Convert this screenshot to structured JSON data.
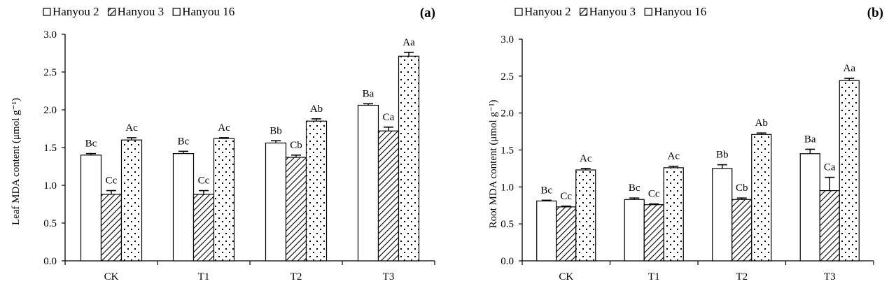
{
  "chart_data": [
    {
      "type": "bar",
      "panel_label": "(a)",
      "title": "",
      "xlabel": "",
      "ylabel": "Leaf MDA content (μmol g⁻¹)",
      "ylim": [
        0,
        3.0
      ],
      "yticks": [
        "0.0",
        "0.5",
        "1.0",
        "1.5",
        "2.0",
        "2.5",
        "3.0"
      ],
      "categories": [
        "CK",
        "T1",
        "T2",
        "T3"
      ],
      "legend_position": "top-left",
      "grid": false,
      "series": [
        {
          "name": "Hanyou 2",
          "pattern": "plain",
          "values": [
            1.4,
            1.42,
            1.56,
            2.06
          ],
          "errors": [
            0.02,
            0.03,
            0.03,
            0.02
          ],
          "labels": [
            "Bc",
            "Bc",
            "Bb",
            "Ba"
          ]
        },
        {
          "name": "Hanyou 3",
          "pattern": "hatch",
          "values": [
            0.88,
            0.88,
            1.37,
            1.72
          ],
          "errors": [
            0.05,
            0.05,
            0.03,
            0.05
          ],
          "labels": [
            "Cc",
            "Cc",
            "Cb",
            "Ca"
          ]
        },
        {
          "name": "Hanyou 16",
          "pattern": "dots",
          "values": [
            1.6,
            1.62,
            1.85,
            2.71
          ],
          "errors": [
            0.03,
            0.01,
            0.03,
            0.05
          ],
          "labels": [
            "Ac",
            "Ac",
            "Ab",
            "Aa"
          ]
        }
      ]
    },
    {
      "type": "bar",
      "panel_label": "(b)",
      "title": "",
      "xlabel": "",
      "ylabel": "Root MDA content (μmol g⁻¹)",
      "ylim": [
        0,
        3.0
      ],
      "yticks": [
        "0.0",
        "0.5",
        "1.0",
        "1.5",
        "2.0",
        "2.5",
        "3.0"
      ],
      "categories": [
        "CK",
        "T1",
        "T2",
        "T3"
      ],
      "legend_position": "top-left",
      "grid": false,
      "series": [
        {
          "name": "Hanyou 2",
          "pattern": "plain",
          "values": [
            0.81,
            0.83,
            1.25,
            1.45
          ],
          "errors": [
            0.01,
            0.02,
            0.05,
            0.06
          ],
          "labels": [
            "Bc",
            "Bc",
            "Bb",
            "Ba"
          ]
        },
        {
          "name": "Hanyou 3",
          "pattern": "hatch",
          "values": [
            0.73,
            0.76,
            0.83,
            0.95
          ],
          "errors": [
            0.01,
            0.01,
            0.02,
            0.18
          ],
          "labels": [
            "Cc",
            "Cc",
            "Cb",
            "Ca"
          ]
        },
        {
          "name": "Hanyou 16",
          "pattern": "dots",
          "values": [
            1.23,
            1.26,
            1.71,
            2.44
          ],
          "errors": [
            0.02,
            0.02,
            0.02,
            0.03
          ],
          "labels": [
            "Ac",
            "Ac",
            "Ab",
            "Aa"
          ]
        }
      ]
    }
  ]
}
